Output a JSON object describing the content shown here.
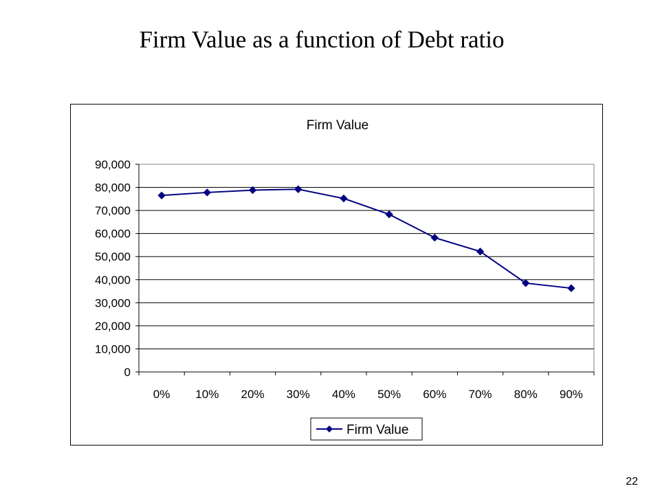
{
  "slide": {
    "title": "Firm Value as a function of Debt ratio",
    "page_number": "22"
  },
  "chart_data": {
    "type": "line",
    "title": "Firm Value",
    "xlabel": "",
    "ylabel": "",
    "categories": [
      "0%",
      "10%",
      "20%",
      "30%",
      "40%",
      "50%",
      "60%",
      "70%",
      "80%",
      "90%"
    ],
    "series": [
      {
        "name": "Firm Value",
        "color": "#000080",
        "marker": "diamond",
        "values": [
          76500,
          77800,
          78800,
          79200,
          75200,
          68300,
          58200,
          52200,
          38500,
          36300
        ]
      }
    ],
    "ylim": [
      0,
      90000
    ],
    "yticks": [
      0,
      10000,
      20000,
      30000,
      40000,
      50000,
      60000,
      70000,
      80000,
      90000
    ],
    "ytick_labels": [
      "0",
      "10,000",
      "20,000",
      "30,000",
      "40,000",
      "50,000",
      "60,000",
      "70,000",
      "80,000",
      "90,000"
    ],
    "grid": true,
    "legend_position": "bottom"
  }
}
